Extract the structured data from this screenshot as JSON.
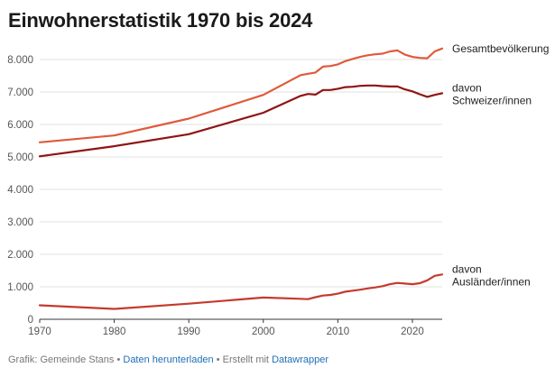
{
  "chart_data": {
    "type": "line",
    "title": "Einwohnerstatistik 1970 bis 2024",
    "xlabel": "",
    "ylabel": "",
    "xlim": [
      1970,
      2024
    ],
    "ylim": [
      0,
      8000
    ],
    "x_ticks": [
      1970,
      1980,
      1990,
      2000,
      2010,
      2020
    ],
    "y_ticks": [
      0,
      1000,
      2000,
      3000,
      4000,
      5000,
      6000,
      7000,
      8000
    ],
    "y_tick_labels": [
      "0",
      "1.000",
      "2.000",
      "3.000",
      "4.000",
      "5.000",
      "6.000",
      "7.000",
      "8.000"
    ],
    "grid": true,
    "series": [
      {
        "name": "Gesamtbevölkerung",
        "label_lines": [
          "Gesamtbevölkerung"
        ],
        "color": "#e05a3a",
        "points": [
          [
            1970,
            5450
          ],
          [
            1980,
            5660
          ],
          [
            1990,
            6180
          ],
          [
            2000,
            6910
          ],
          [
            2005,
            7520
          ],
          [
            2006,
            7560
          ],
          [
            2007,
            7600
          ],
          [
            2008,
            7780
          ],
          [
            2009,
            7800
          ],
          [
            2010,
            7850
          ],
          [
            2011,
            7950
          ],
          [
            2012,
            8020
          ],
          [
            2013,
            8080
          ],
          [
            2014,
            8130
          ],
          [
            2015,
            8160
          ],
          [
            2016,
            8180
          ],
          [
            2017,
            8250
          ],
          [
            2018,
            8280
          ],
          [
            2019,
            8150
          ],
          [
            2020,
            8080
          ],
          [
            2021,
            8050
          ],
          [
            2022,
            8040
          ],
          [
            2023,
            8250
          ],
          [
            2024,
            8340
          ]
        ]
      },
      {
        "name": "davon Schweizer/innen",
        "label_lines": [
          "davon",
          "Schweizer/innen"
        ],
        "color": "#8f1414",
        "points": [
          [
            1970,
            5020
          ],
          [
            1980,
            5330
          ],
          [
            1990,
            5700
          ],
          [
            2000,
            6360
          ],
          [
            2005,
            6880
          ],
          [
            2006,
            6940
          ],
          [
            2007,
            6920
          ],
          [
            2008,
            7060
          ],
          [
            2009,
            7060
          ],
          [
            2010,
            7100
          ],
          [
            2011,
            7150
          ],
          [
            2012,
            7160
          ],
          [
            2013,
            7190
          ],
          [
            2014,
            7200
          ],
          [
            2015,
            7200
          ],
          [
            2016,
            7180
          ],
          [
            2017,
            7170
          ],
          [
            2018,
            7170
          ],
          [
            2019,
            7080
          ],
          [
            2020,
            7020
          ],
          [
            2021,
            6930
          ],
          [
            2022,
            6850
          ],
          [
            2023,
            6910
          ],
          [
            2024,
            6960
          ]
        ]
      },
      {
        "name": "davon Ausländer/innen",
        "label_lines": [
          "davon",
          "Ausländer/innen"
        ],
        "color": "#c53a2c",
        "points": [
          [
            1970,
            430
          ],
          [
            1980,
            320
          ],
          [
            1990,
            480
          ],
          [
            2000,
            670
          ],
          [
            2005,
            630
          ],
          [
            2006,
            620
          ],
          [
            2007,
            680
          ],
          [
            2008,
            730
          ],
          [
            2009,
            750
          ],
          [
            2010,
            790
          ],
          [
            2011,
            850
          ],
          [
            2012,
            880
          ],
          [
            2013,
            910
          ],
          [
            2014,
            950
          ],
          [
            2015,
            980
          ],
          [
            2016,
            1020
          ],
          [
            2017,
            1080
          ],
          [
            2018,
            1120
          ],
          [
            2019,
            1100
          ],
          [
            2020,
            1080
          ],
          [
            2021,
            1110
          ],
          [
            2022,
            1200
          ],
          [
            2023,
            1340
          ],
          [
            2024,
            1380
          ]
        ]
      }
    ]
  },
  "footer": {
    "source": "Grafik: Gemeinde Stans",
    "separator": "•",
    "download_link": "Daten herunterladen",
    "created_with": "Erstellt mit",
    "tool_link": "Datawrapper"
  }
}
